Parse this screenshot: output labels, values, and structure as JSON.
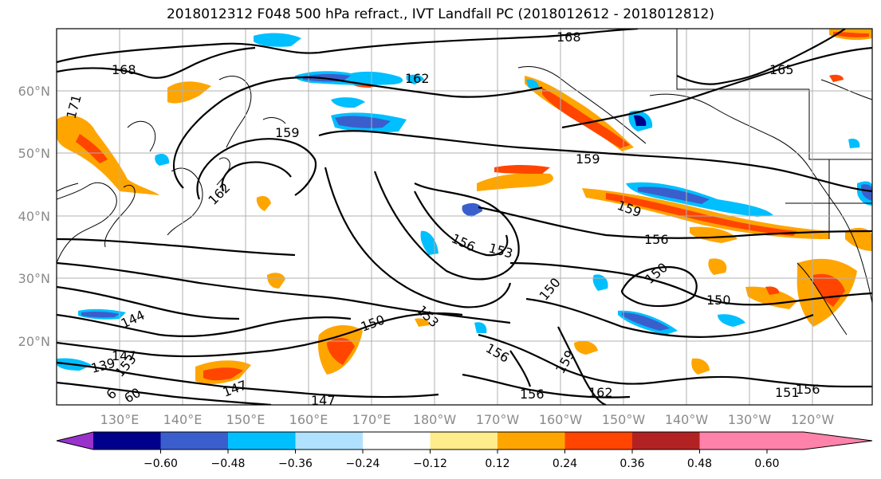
{
  "title": "2018012312 F048 500 hPa refract., IVT Landfall PC (2018012612 - 2018012812)",
  "lat_labels": [
    "60°N",
    "50°N",
    "40°N",
    "30°N",
    "20°N"
  ],
  "lon_labels": [
    "130°E",
    "140°E",
    "150°E",
    "160°E",
    "170°E",
    "180°W",
    "170°W",
    "160°W",
    "150°W",
    "140°W",
    "130°W",
    "120°W"
  ],
  "contour_labels": [
    "168",
    "168",
    "165",
    "162",
    "159",
    "171",
    "159",
    "162",
    "159",
    "156",
    "153",
    "156",
    "150",
    "150",
    "150",
    "153",
    "144",
    "150",
    "147",
    "139",
    "153",
    "156",
    "159",
    "156",
    "162",
    "151",
    "156",
    "147",
    "147",
    "6",
    "60"
  ],
  "colorbar": {
    "ticks": [
      "−0.60",
      "−0.48",
      "−0.36",
      "−0.24",
      "−0.12",
      "0.12",
      "0.24",
      "0.36",
      "0.48",
      "0.60"
    ],
    "colors": [
      "#9932CC",
      "#00008B",
      "#3A5FCD",
      "#00BFFF",
      "#B0E2FF",
      "#FFFFFF",
      "#FFEC8B",
      "#FFA500",
      "#FF4500",
      "#B22222",
      "#FF82AB"
    ]
  }
}
